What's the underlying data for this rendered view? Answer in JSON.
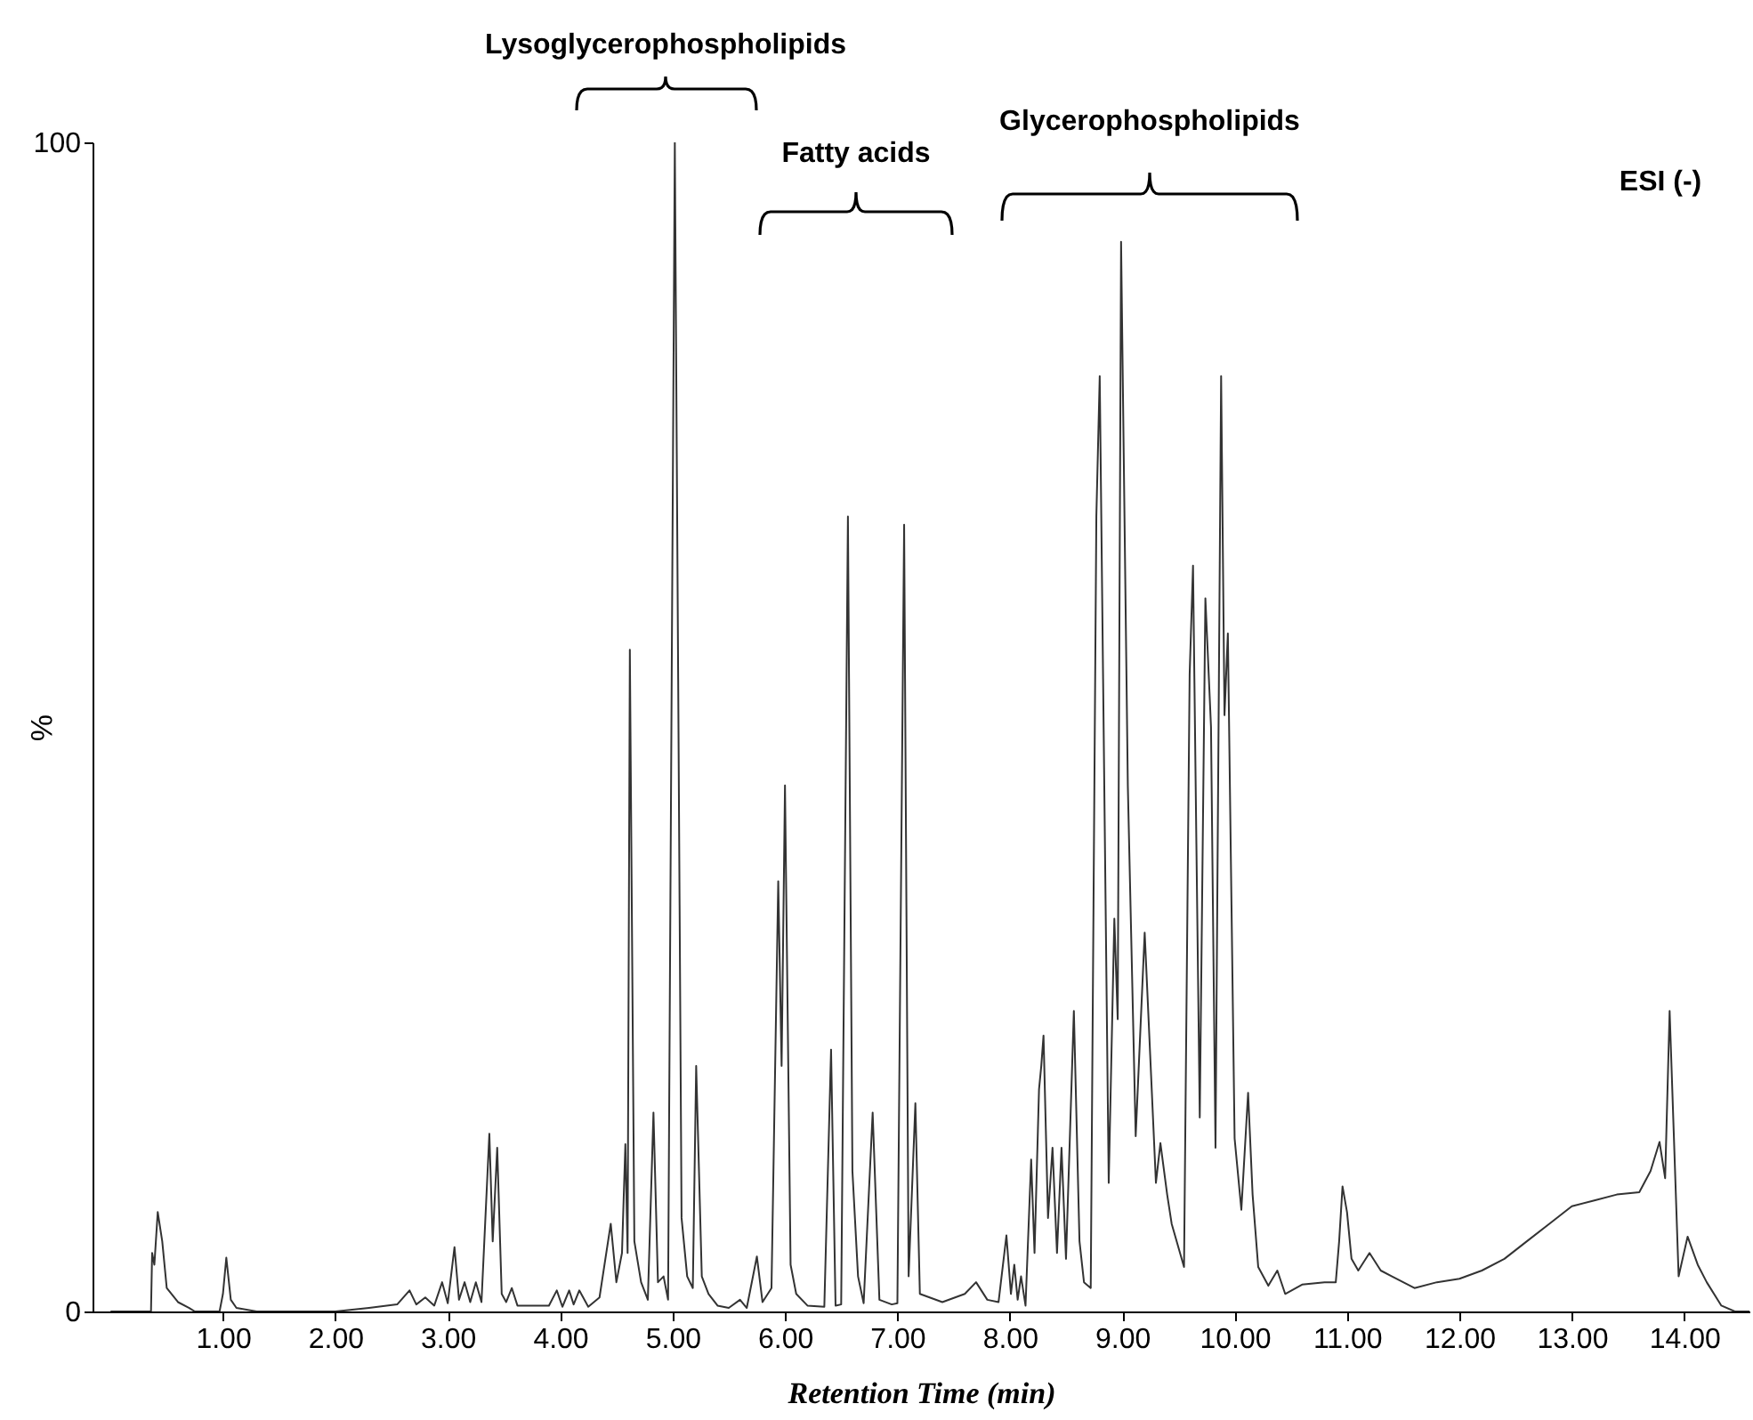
{
  "chart_data": {
    "type": "line",
    "xlabel": "Retention Time (min)",
    "ylabel": "%",
    "annotations": [
      "Lysoglycerophospholipids",
      "Fatty acids",
      "Glycerophospholipids",
      "ESI (-)"
    ],
    "xlim": [
      -0.16,
      14.58
    ],
    "ylim": [
      0,
      100
    ],
    "xticks": [
      {
        "value": 1,
        "label": "1.00"
      },
      {
        "value": 2,
        "label": "2.00"
      },
      {
        "value": 3,
        "label": "3.00"
      },
      {
        "value": 4,
        "label": "4.00"
      },
      {
        "value": 5,
        "label": "5.00"
      },
      {
        "value": 6,
        "label": "6.00"
      },
      {
        "value": 7,
        "label": "7.00"
      },
      {
        "value": 8,
        "label": "8.00"
      },
      {
        "value": 9,
        "label": "9.00"
      },
      {
        "value": 10,
        "label": "10.00"
      },
      {
        "value": 11,
        "label": "11.00"
      },
      {
        "value": 12,
        "label": "12.00"
      },
      {
        "value": 13,
        "label": "13.00"
      },
      {
        "value": 14,
        "label": "14.00"
      }
    ],
    "yticks": [
      0,
      100
    ],
    "grid": false,
    "marker": "none",
    "line_style": "solid",
    "series": [
      {
        "color": "#333333",
        "x": [
          0,
          0.36,
          0.37,
          0.39,
          0.42,
          0.46,
          0.5,
          0.6,
          0.7,
          0.75,
          0.97,
          1.0,
          1.03,
          1.07,
          1.12,
          1.3,
          2.0,
          2.3,
          2.55,
          2.66,
          2.72,
          2.8,
          2.88,
          2.95,
          3.0,
          3.06,
          3.1,
          3.15,
          3.2,
          3.25,
          3.3,
          3.37,
          3.4,
          3.44,
          3.48,
          3.52,
          3.57,
          3.62,
          3.9,
          3.97,
          4.02,
          4.08,
          4.12,
          4.17,
          4.25,
          4.35,
          4.45,
          4.5,
          4.55,
          4.58,
          4.6,
          4.62,
          4.66,
          4.72,
          4.78,
          4.83,
          4.87,
          4.92,
          4.96,
          5.02,
          5.08,
          5.13,
          5.18,
          5.21,
          5.26,
          5.32,
          5.4,
          5.5,
          5.6,
          5.66,
          5.75,
          5.8,
          5.88,
          5.94,
          5.97,
          6.0,
          6.05,
          6.1,
          6.2,
          6.35,
          6.41,
          6.45,
          6.5,
          6.56,
          6.6,
          6.65,
          6.7,
          6.78,
          6.84,
          6.95,
          7.0,
          7.06,
          7.1,
          7.16,
          7.2,
          7.4,
          7.6,
          7.7,
          7.8,
          7.9,
          7.97,
          8.01,
          8.04,
          8.07,
          8.1,
          8.14,
          8.19,
          8.22,
          8.26,
          8.28,
          8.3,
          8.34,
          8.38,
          8.42,
          8.46,
          8.5,
          8.57,
          8.62,
          8.66,
          8.72,
          8.77,
          8.8,
          8.88,
          8.93,
          8.96,
          8.99,
          9.05,
          9.12,
          9.2,
          9.3,
          9.34,
          9.4,
          9.44,
          9.55,
          9.6,
          9.63,
          9.66,
          9.69,
          9.74,
          9.79,
          9.83,
          9.88,
          9.91,
          9.94,
          10.0,
          10.06,
          10.12,
          10.16,
          10.21,
          10.3,
          10.38,
          10.45,
          10.6,
          10.8,
          10.9,
          10.93,
          10.96,
          11.0,
          11.04,
          11.1,
          11.2,
          11.3,
          11.4,
          11.6,
          11.8,
          12.0,
          12.2,
          12.4,
          12.6,
          12.8,
          13.0,
          13.2,
          13.4,
          13.6,
          13.7,
          13.78,
          13.83,
          13.87,
          13.95,
          14.03,
          14.12,
          14.2,
          14.33,
          14.45,
          14.58
        ],
        "values": [
          0,
          0,
          5,
          4,
          8.5,
          6,
          2,
          0.8,
          0.3,
          0,
          0,
          1.5,
          4.6,
          1,
          0.3,
          0,
          0,
          0.3,
          0.6,
          1.8,
          0.6,
          1.2,
          0.5,
          2.5,
          0.7,
          5.5,
          1,
          2.5,
          0.8,
          2.5,
          0.8,
          15.2,
          6,
          14,
          1.5,
          0.8,
          2,
          0.5,
          0.5,
          1.8,
          0.4,
          1.8,
          0.6,
          1.8,
          0.4,
          1.2,
          7.5,
          2.5,
          5,
          14.3,
          5,
          56.6,
          6,
          2.5,
          1,
          17,
          2.5,
          3,
          1,
          100,
          8,
          3,
          2,
          21,
          3,
          1.5,
          0.5,
          0.3,
          1,
          0.3,
          4.7,
          0.8,
          2,
          36.8,
          21,
          45,
          4,
          1.5,
          0.5,
          0.4,
          22.4,
          0.5,
          0.6,
          68,
          12,
          3,
          0.7,
          17,
          1,
          0.6,
          0.7,
          67.3,
          3,
          17.8,
          1.5,
          0.8,
          1.5,
          2.5,
          1,
          0.8,
          6.5,
          1.5,
          4,
          1,
          3,
          0.5,
          13,
          5,
          19,
          21,
          23.6,
          8,
          14,
          5,
          14,
          4.5,
          25.7,
          6,
          2.5,
          2,
          68,
          80,
          11,
          33.6,
          25,
          91.5,
          45,
          15,
          32.4,
          11,
          14.4,
          10,
          7.5,
          3.8,
          54.5,
          63.8,
          40,
          16.6,
          61,
          50,
          14,
          80,
          51,
          58,
          14.8,
          8.7,
          18.7,
          10,
          3.8,
          2.2,
          3.5,
          1.5,
          2.3,
          2.5,
          2.5,
          6,
          10.7,
          8.5,
          4.5,
          3.5,
          5,
          3.5,
          3,
          2,
          2.5,
          2.8,
          3.5,
          4.5,
          6,
          7.5,
          9,
          9.5,
          10,
          10.2,
          12,
          14.5,
          11.4,
          25.7,
          3,
          6.4,
          4,
          2.5,
          0.5,
          0,
          0
        ]
      }
    ]
  }
}
